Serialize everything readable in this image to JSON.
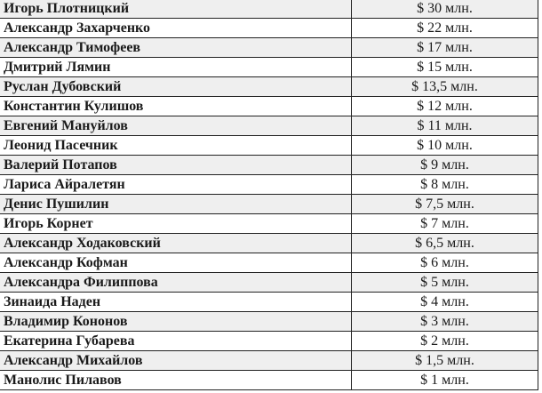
{
  "rows": [
    {
      "name": "Игорь Плотницкий",
      "value": "$ 30 млн."
    },
    {
      "name": "Александр Захарченко",
      "value": "$ 22 млн."
    },
    {
      "name": "Александр Тимофеев",
      "value": "$ 17 млн."
    },
    {
      "name": "Дмитрий Лямин",
      "value": "$ 15 млн."
    },
    {
      "name": "Руслан Дубовский",
      "value": "$ 13,5 млн."
    },
    {
      "name": "Константин Кулишов",
      "value": "$ 12 млн."
    },
    {
      "name": "Евгений Мануйлов",
      "value": "$ 11 млн."
    },
    {
      "name": "Леонид Пасечник",
      "value": "$ 10 млн."
    },
    {
      "name": "Валерий Потапов",
      "value": "$ 9 млн."
    },
    {
      "name": "Лариса Айралетян",
      "value": "$ 8 млн."
    },
    {
      "name": "Денис Пушилин",
      "value": "$ 7,5 млн."
    },
    {
      "name": "Игорь Корнет",
      "value": "$ 7 млн."
    },
    {
      "name": "Александр Ходаковский",
      "value": "$ 6,5 млн."
    },
    {
      "name": "Александр Кофман",
      "value": "$ 6 млн."
    },
    {
      "name": "Александра Филиппова",
      "value": "$ 5 млн."
    },
    {
      "name": "Зинаида Наден",
      "value": "$ 4 млн."
    },
    {
      "name": "Владимир Кононов",
      "value": "$ 3 млн."
    },
    {
      "name": "Екатерина Губарева",
      "value": "$ 2 млн."
    },
    {
      "name": "Александр Михайлов",
      "value": "$ 1,5 млн."
    },
    {
      "name": "Манолис Пилавов",
      "value": "$ 1 млн."
    }
  ]
}
